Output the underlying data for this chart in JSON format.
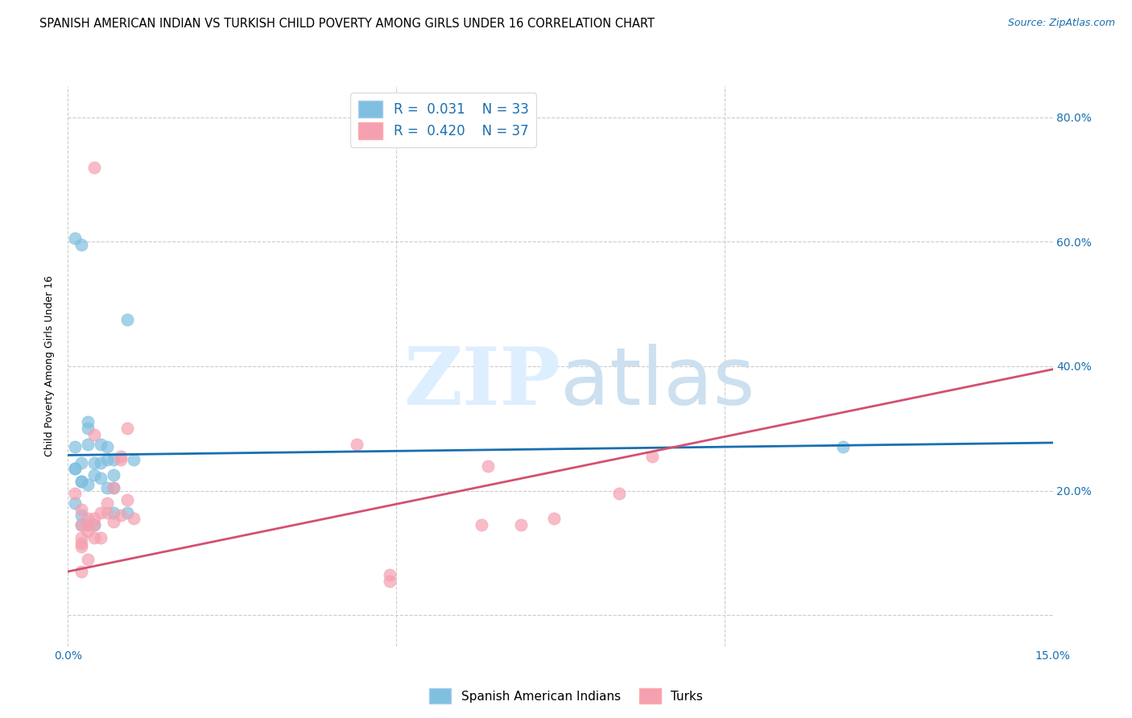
{
  "title": "SPANISH AMERICAN INDIAN VS TURKISH CHILD POVERTY AMONG GIRLS UNDER 16 CORRELATION CHART",
  "source": "Source: ZipAtlas.com",
  "ylabel": "Child Poverty Among Girls Under 16",
  "xlim": [
    0.0,
    0.15
  ],
  "ylim": [
    -0.05,
    0.85
  ],
  "xticks": [
    0.0,
    0.05,
    0.1,
    0.15
  ],
  "xtick_labels": [
    "0.0%",
    "",
    "",
    "15.0%"
  ],
  "ytick_positions": [
    0.0,
    0.2,
    0.4,
    0.6,
    0.8
  ],
  "ytick_labels": [
    "",
    "20.0%",
    "40.0%",
    "60.0%",
    "80.0%"
  ],
  "background_color": "#ffffff",
  "grid_color": "#cccccc",
  "color_blue": "#7fbfdf",
  "color_pink": "#f4a0b0",
  "color_blue_line": "#1a6faf",
  "color_pink_line": "#d45070",
  "color_text_blue": "#1a6faf",
  "title_fontsize": 10.5,
  "axis_label_fontsize": 9,
  "tick_fontsize": 10,
  "blue_x": [
    0.001,
    0.002,
    0.009,
    0.001,
    0.003,
    0.003,
    0.006,
    0.006,
    0.001,
    0.002,
    0.004,
    0.002,
    0.004,
    0.002,
    0.003,
    0.005,
    0.005,
    0.007,
    0.007,
    0.006,
    0.007,
    0.009,
    0.01,
    0.005,
    0.007,
    0.001,
    0.002,
    0.002,
    0.003,
    0.004,
    0.118,
    0.001,
    0.003
  ],
  "blue_y": [
    0.605,
    0.595,
    0.475,
    0.27,
    0.3,
    0.275,
    0.25,
    0.27,
    0.235,
    0.245,
    0.245,
    0.215,
    0.225,
    0.215,
    0.21,
    0.22,
    0.245,
    0.205,
    0.225,
    0.205,
    0.165,
    0.165,
    0.25,
    0.275,
    0.25,
    0.18,
    0.16,
    0.145,
    0.145,
    0.145,
    0.27,
    0.235,
    0.31
  ],
  "pink_x": [
    0.004,
    0.001,
    0.002,
    0.002,
    0.002,
    0.002,
    0.003,
    0.002,
    0.003,
    0.003,
    0.002,
    0.003,
    0.004,
    0.004,
    0.005,
    0.005,
    0.004,
    0.006,
    0.006,
    0.007,
    0.007,
    0.008,
    0.008,
    0.008,
    0.009,
    0.01,
    0.009,
    0.064,
    0.069,
    0.074,
    0.089,
    0.084,
    0.049,
    0.063,
    0.044,
    0.049,
    0.004
  ],
  "pink_y": [
    0.72,
    0.195,
    0.17,
    0.145,
    0.115,
    0.11,
    0.09,
    0.07,
    0.135,
    0.155,
    0.125,
    0.145,
    0.145,
    0.125,
    0.125,
    0.165,
    0.155,
    0.18,
    0.165,
    0.15,
    0.205,
    0.255,
    0.25,
    0.16,
    0.185,
    0.155,
    0.3,
    0.24,
    0.145,
    0.155,
    0.255,
    0.195,
    0.065,
    0.145,
    0.275,
    0.055,
    0.29
  ],
  "blue_line_x": [
    0.0,
    0.15
  ],
  "blue_line_y": [
    0.257,
    0.277
  ],
  "pink_line_x": [
    0.0,
    0.15
  ],
  "pink_line_y": [
    0.07,
    0.395
  ]
}
